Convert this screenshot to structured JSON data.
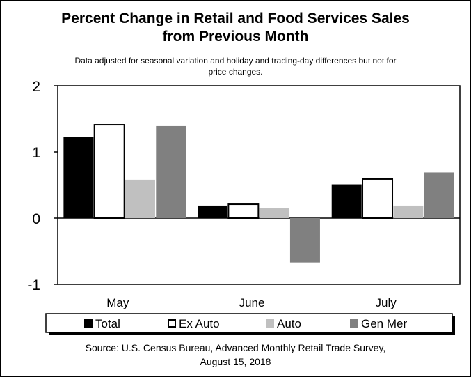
{
  "chart_data": {
    "type": "bar",
    "title": "Percent Change in Retail and Food Services Sales from Previous Month",
    "title_lines": [
      "Percent Change in Retail and Food Services Sales",
      "from Previous Month"
    ],
    "subtitle": "Data adjusted for seasonal variation and holiday and trading-day differences but not for price changes.",
    "subtitle_lines": [
      "Data adjusted for seasonal variation and holiday and trading-day differences but not for",
      "price changes."
    ],
    "categories": [
      "May",
      "June",
      "July"
    ],
    "series": [
      {
        "name": "Total",
        "values": [
          1.23,
          0.19,
          0.51
        ],
        "color": "#000000",
        "outline": false
      },
      {
        "name": "Ex Auto",
        "values": [
          1.41,
          0.21,
          0.59
        ],
        "color": "#ffffff",
        "outline": true
      },
      {
        "name": "Auto",
        "values": [
          0.58,
          0.15,
          0.19
        ],
        "color": "#c0c0c0",
        "outline": false
      },
      {
        "name": "Gen Mer",
        "values": [
          1.39,
          -0.67,
          0.69
        ],
        "color": "#808080",
        "outline": false
      }
    ],
    "ylim": [
      -1,
      2
    ],
    "yticks": [
      -1,
      0,
      1,
      2
    ],
    "xlabel": "",
    "ylabel": "",
    "grid": false,
    "legend_position": "bottom",
    "source_lines": [
      "Source: U.S. Census Bureau, Advanced Monthly Retail Trade Survey,",
      "August 15, 2018"
    ]
  }
}
